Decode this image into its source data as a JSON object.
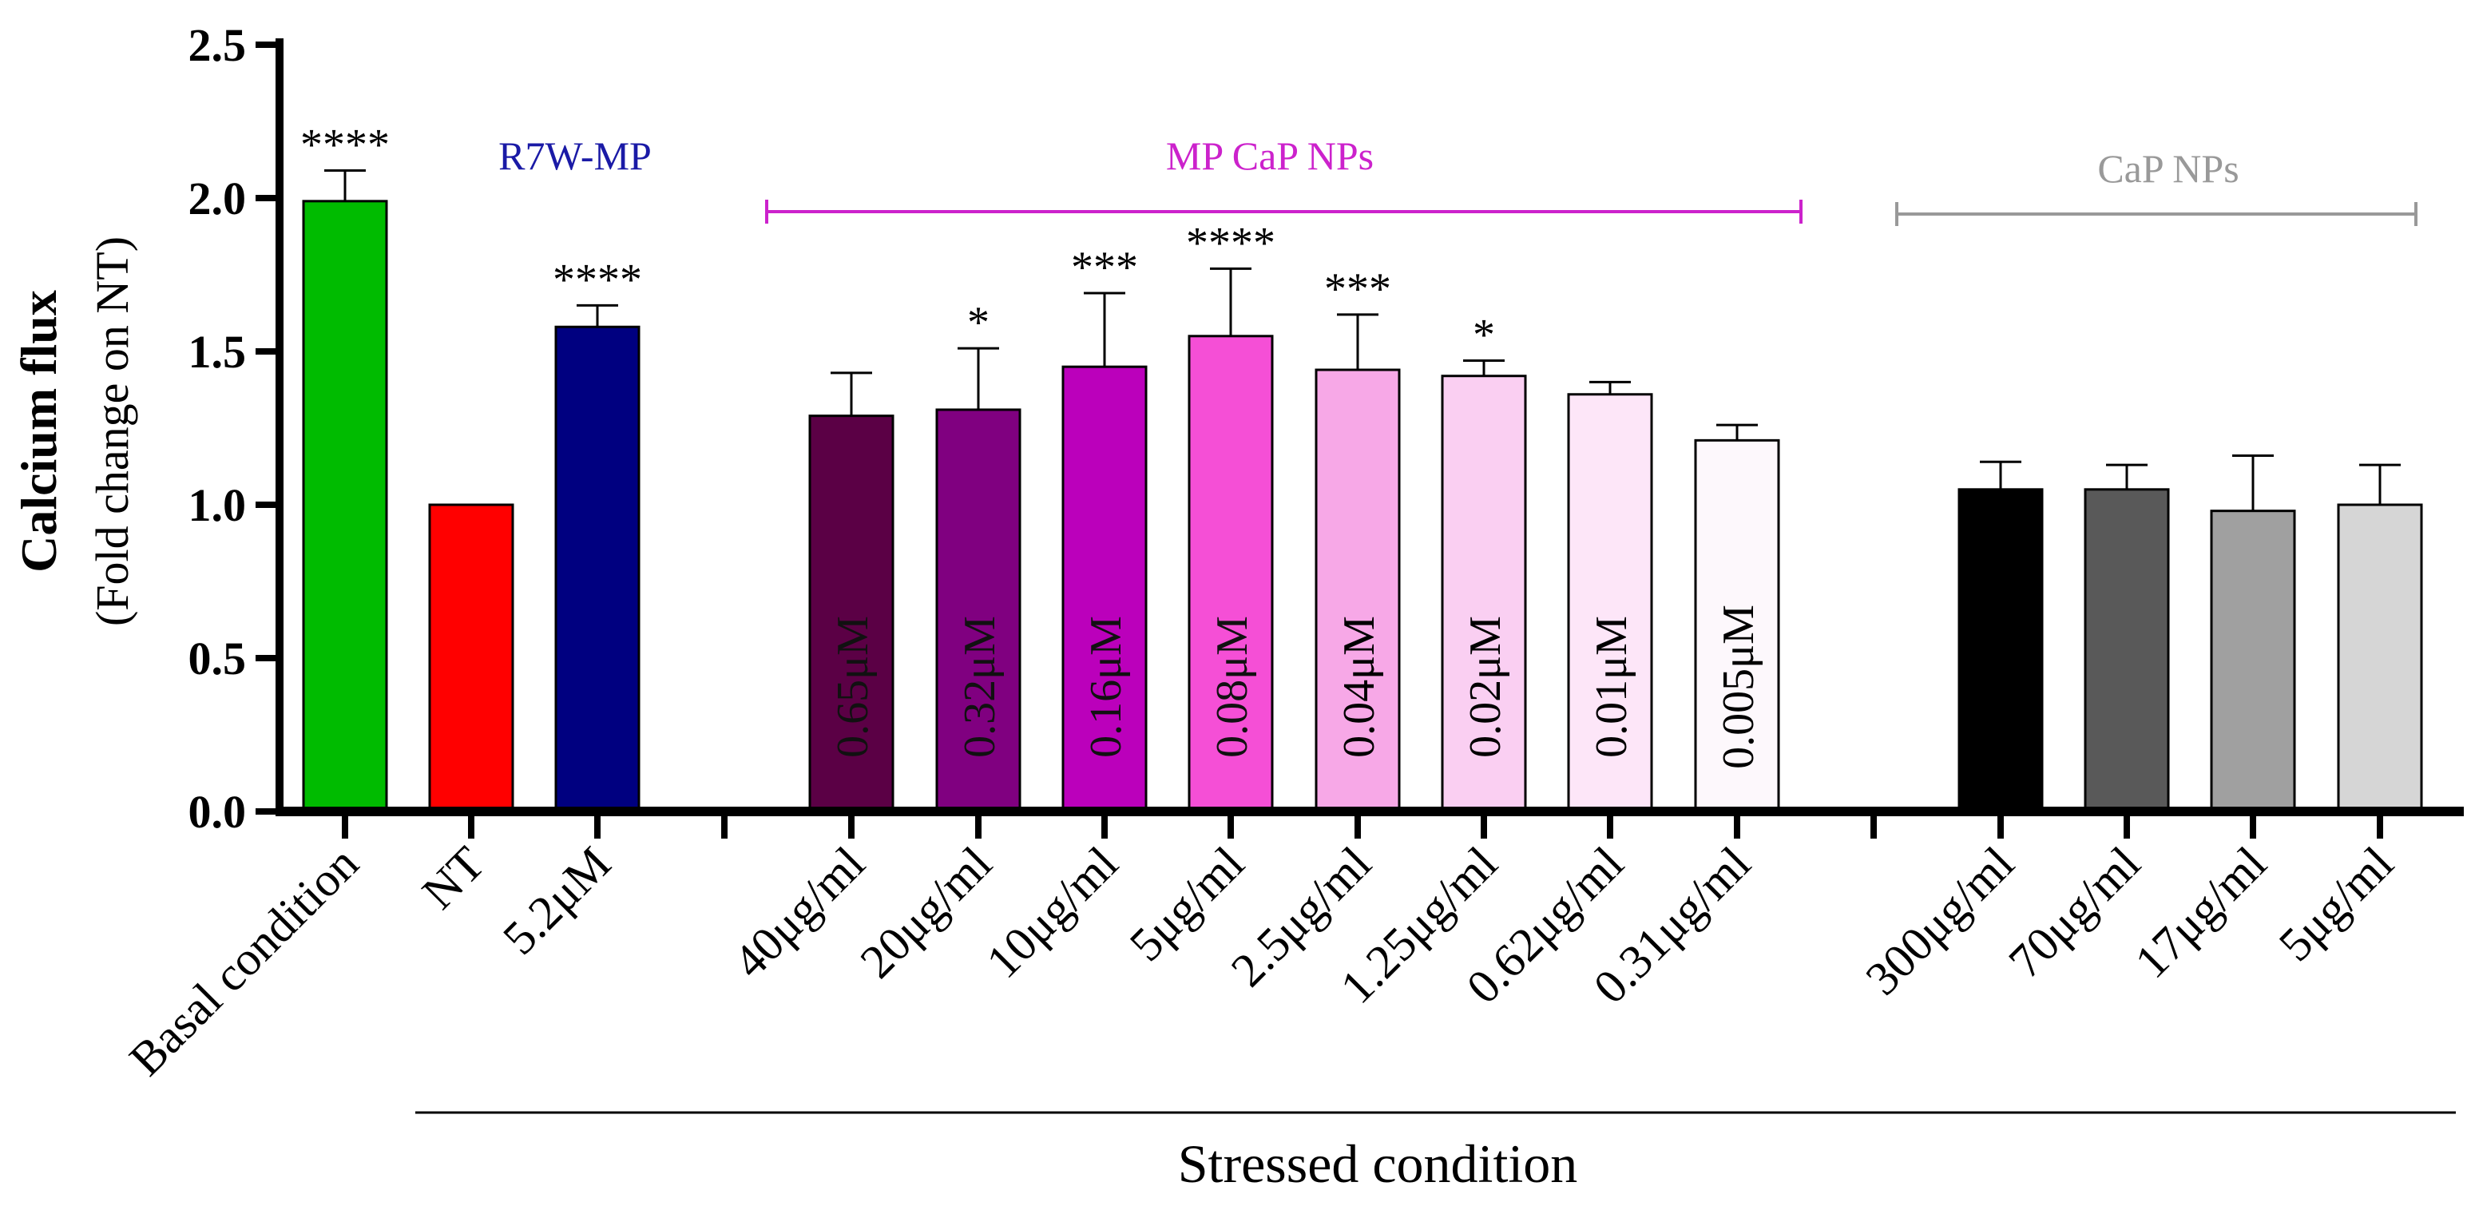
{
  "chart_data": {
    "type": "bar",
    "title": "",
    "xlabel": "Stressed condition",
    "ylabel": "Calcium flux",
    "ylabel_sub": "(Fold change on NT)",
    "ylim": [
      0,
      2.5
    ],
    "yticks": [
      "0.0",
      "0.5",
      "1.0",
      "1.5",
      "2.0",
      "2.5"
    ],
    "grid": false,
    "groups": [
      {
        "label": "R7W-MP",
        "color": "#1a1aa6"
      },
      {
        "label": "MP CaP NPs",
        "color": "#cc22cc"
      },
      {
        "label": "CaP NPs",
        "color": "#999999"
      }
    ],
    "bars": [
      {
        "label": "Basal condition",
        "value": 1.99,
        "error": 0.1,
        "sig": "****",
        "inbar": "",
        "color": "#00bb00"
      },
      {
        "label": "NT",
        "value": 1.0,
        "error": 0,
        "sig": "",
        "inbar": "",
        "color": "#ff0000"
      },
      {
        "label": "5.2μM",
        "value": 1.58,
        "error": 0.07,
        "sig": "****",
        "inbar": "",
        "color": "#000080"
      },
      {
        "label": "40μg/ml",
        "value": 1.29,
        "error": 0.14,
        "sig": "",
        "inbar": "0.65μM",
        "color": "#5b0045"
      },
      {
        "label": "20μg/ml",
        "value": 1.31,
        "error": 0.2,
        "sig": "*",
        "inbar": "0.32μM",
        "color": "#800080"
      },
      {
        "label": "10μg/ml",
        "value": 1.45,
        "error": 0.24,
        "sig": "***",
        "inbar": "0.16μM",
        "color": "#bb00bb"
      },
      {
        "label": "5μg/ml",
        "value": 1.55,
        "error": 0.22,
        "sig": "****",
        "inbar": "0.08μM",
        "color": "#f54fd6"
      },
      {
        "label": "2.5μg/ml",
        "value": 1.44,
        "error": 0.18,
        "sig": "***",
        "inbar": "0.04μM",
        "color": "#f7a8e7"
      },
      {
        "label": "1.25μg/ml",
        "value": 1.42,
        "error": 0.05,
        "sig": "*",
        "inbar": "0.02μM",
        "color": "#facff2"
      },
      {
        "label": "0.62μg/ml",
        "value": 1.36,
        "error": 0.04,
        "sig": "",
        "inbar": "0.01μM",
        "color": "#fde6f8"
      },
      {
        "label": "0.31μg/ml",
        "value": 1.21,
        "error": 0.05,
        "sig": "",
        "inbar": "0.005μM",
        "color": "#fdf8fc"
      },
      {
        "label": "300μg/ml",
        "value": 1.05,
        "error": 0.09,
        "sig": "",
        "inbar": "",
        "color": "#000000"
      },
      {
        "label": "70μg/ml",
        "value": 1.05,
        "error": 0.08,
        "sig": "",
        "inbar": "",
        "color": "#595959"
      },
      {
        "label": "17μg/ml",
        "value": 0.98,
        "error": 0.18,
        "sig": "",
        "inbar": "",
        "color": "#a0a0a0"
      },
      {
        "label": "5μg/ml",
        "value": 1.0,
        "error": 0.13,
        "sig": "",
        "inbar": "",
        "color": "#d6d6d6"
      }
    ]
  }
}
